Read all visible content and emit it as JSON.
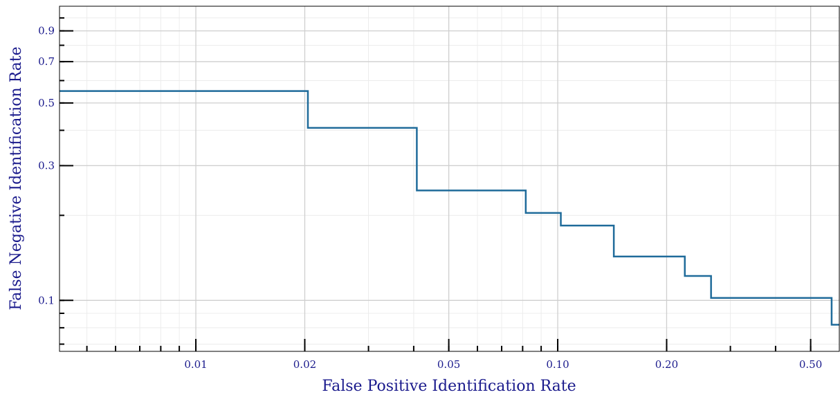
{
  "chart_data": {
    "type": "line",
    "title": "",
    "xlabel": "False Positive Identification Rate",
    "ylabel": "False Negative Identification Rate",
    "x_scale": "log",
    "y_scale": "log",
    "xlim": [
      0.0042,
      0.6
    ],
    "ylim": [
      0.066,
      1.1
    ],
    "grid": true,
    "legend": "none",
    "x_ticks": [
      0.01,
      0.02,
      0.05,
      0.1,
      0.2,
      0.5
    ],
    "x_tick_labels": [
      "0.01",
      "0.02",
      "0.05",
      "0.10",
      "0.20",
      "0.50"
    ],
    "y_ticks": [
      0.1,
      0.3,
      0.5,
      0.7,
      0.9
    ],
    "y_tick_labels": [
      "0.1",
      "0.3",
      "0.5",
      "0.7",
      "0.9"
    ],
    "series": [
      {
        "color": "#1f6b9a",
        "step": "post",
        "x": [
          0.0042,
          0.0204,
          0.0408,
          0.0816,
          0.102,
          0.1429,
          0.2245,
          0.2653,
          0.5714,
          0.6
        ],
        "y": [
          0.551,
          0.408,
          0.245,
          0.204,
          0.184,
          0.143,
          0.122,
          0.102,
          0.082,
          0.082
        ]
      }
    ]
  }
}
